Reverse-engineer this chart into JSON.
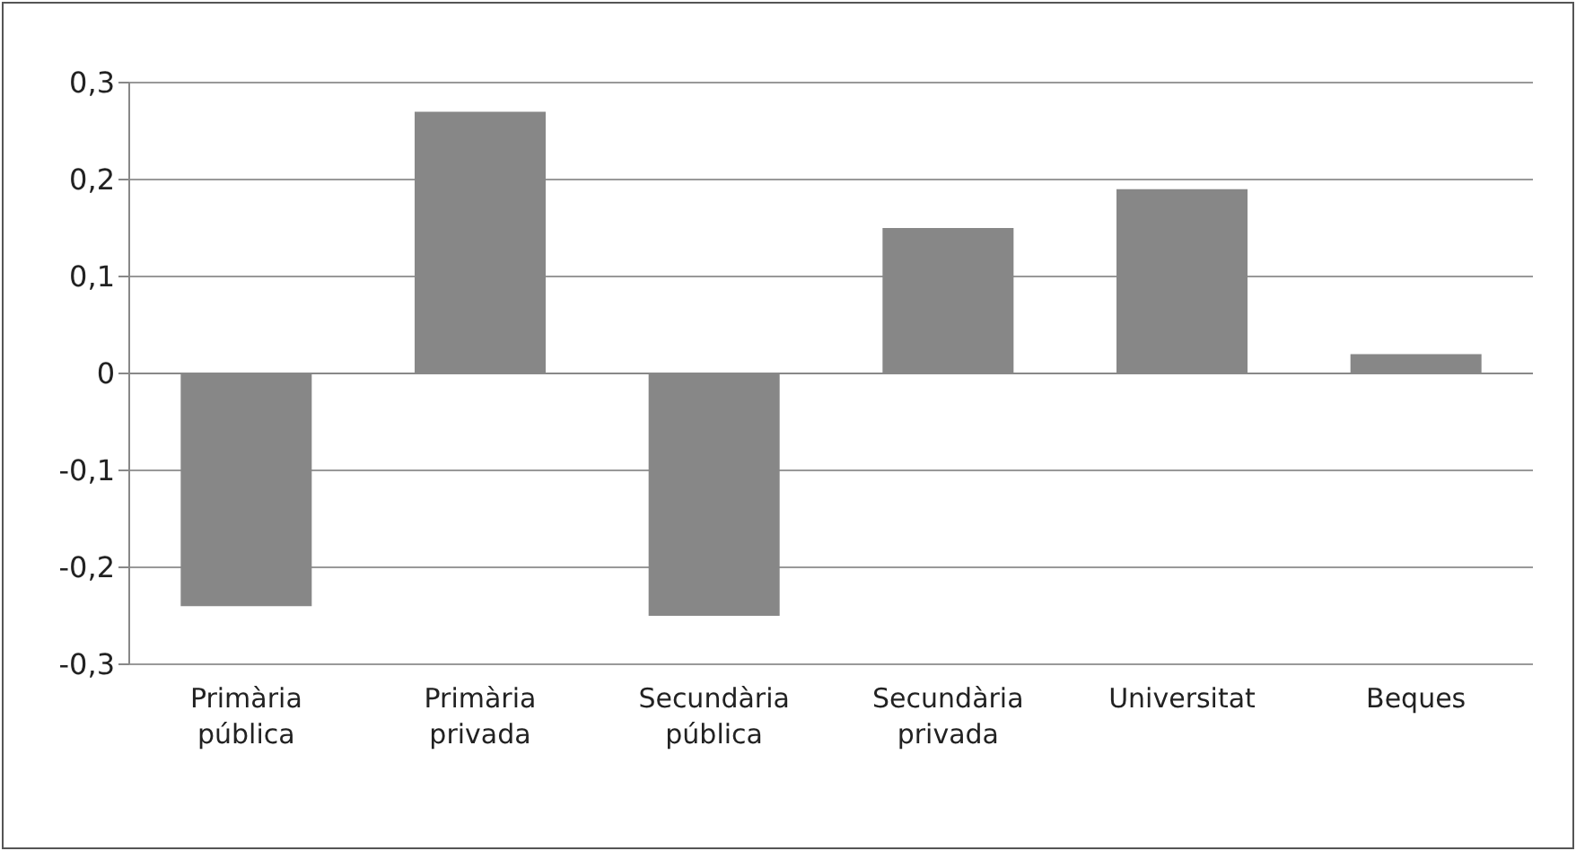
{
  "chart_data": {
    "type": "bar",
    "categories": [
      "Primària pública",
      "Primària privada",
      "Secundària pública",
      "Secundària privada",
      "Universitat",
      "Beques"
    ],
    "values": [
      -0.24,
      0.27,
      -0.25,
      0.15,
      0.19,
      0.02
    ],
    "color": "#878787",
    "ylim": [
      -0.3,
      0.3
    ],
    "yticks": [
      {
        "value": -0.3,
        "label": "-0,3"
      },
      {
        "value": -0.2,
        "label": "-0,2"
      },
      {
        "value": -0.1,
        "label": "-0,1"
      },
      {
        "value": 0,
        "label": "0"
      },
      {
        "value": 0.1,
        "label": "0,1"
      },
      {
        "value": 0.2,
        "label": "0,2"
      },
      {
        "value": 0.3,
        "label": "0,3"
      }
    ],
    "grid": "y",
    "legend": false
  }
}
